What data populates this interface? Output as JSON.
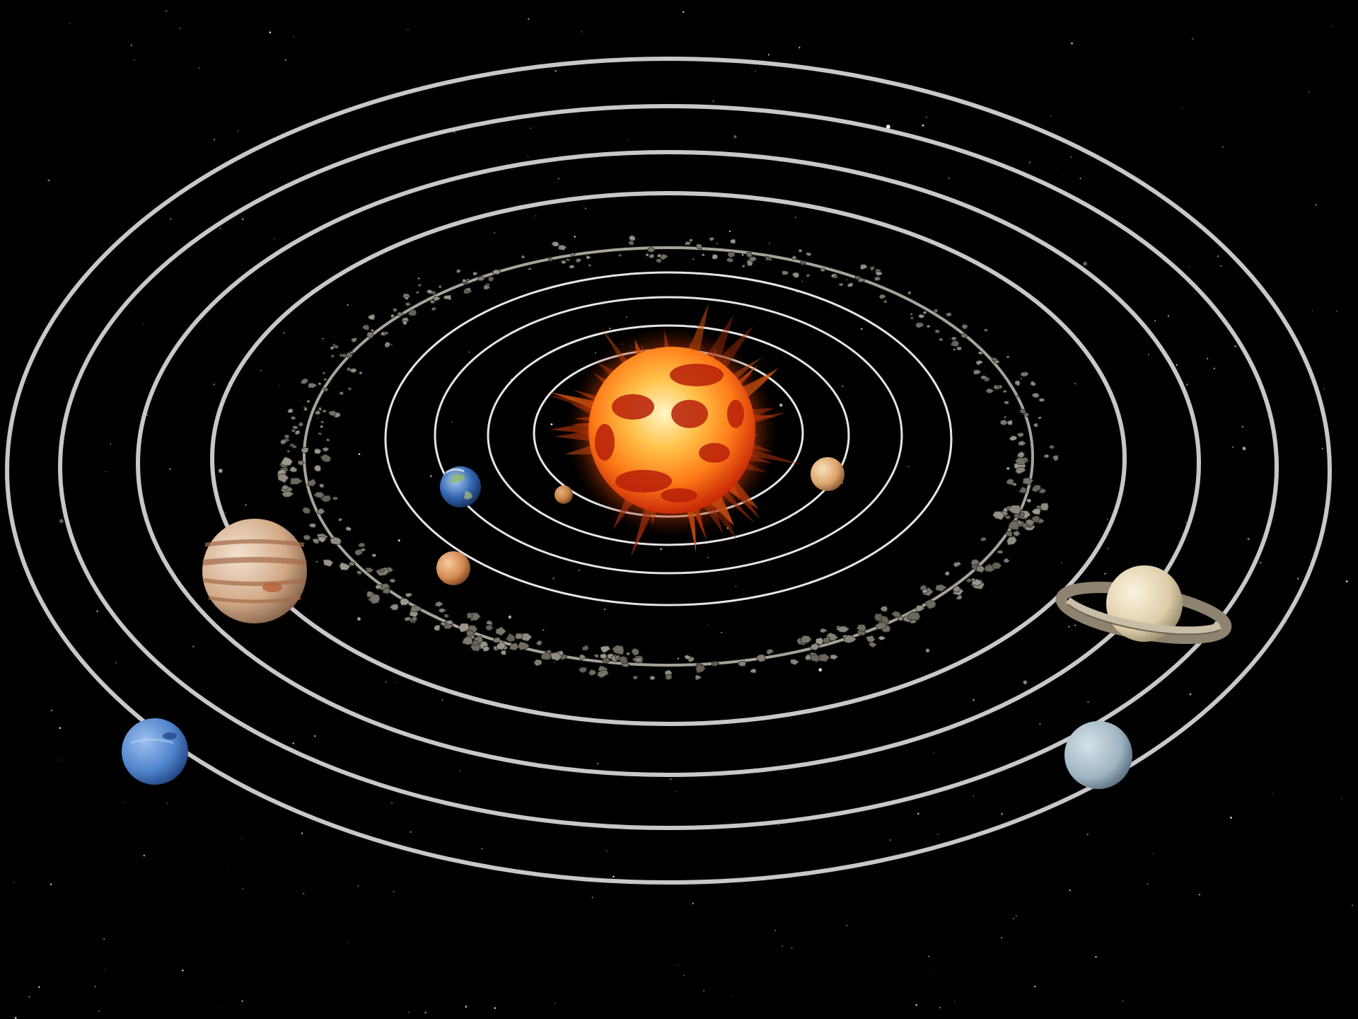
{
  "scene": {
    "subject": "solar-system",
    "palette": {
      "space": "#000000",
      "orbit_outer": "#c8c8c8",
      "orbit_inner": "#e6e6e6",
      "sun_core": "#fff2b0",
      "sun_mid": "#ff9a1e",
      "sun_edge": "#d8320a",
      "sun_spot": "#b01808",
      "asteroid": "#8a8479",
      "mercury": "#c98a4a",
      "venus": "#e4b27a",
      "earth_ocean": "#2a5ca8",
      "earth_land": "#8fb56a",
      "mars": "#d08a55",
      "jupiter": "#d9b99a",
      "jupiter_band": "#a86e4c",
      "saturn": "#e8dcc0",
      "saturn_ring": "#b8ad96",
      "uranus": "#a9bcc8",
      "neptune": "#4a7fc8"
    },
    "bodies": [
      {
        "name": "sun",
        "kind": "star"
      },
      {
        "name": "mercury",
        "kind": "planet"
      },
      {
        "name": "venus",
        "kind": "planet"
      },
      {
        "name": "earth",
        "kind": "planet"
      },
      {
        "name": "mars",
        "kind": "planet"
      },
      {
        "name": "asteroid-belt",
        "kind": "belt"
      },
      {
        "name": "jupiter",
        "kind": "planet"
      },
      {
        "name": "saturn",
        "kind": "planet",
        "rings": true
      },
      {
        "name": "uranus",
        "kind": "planet"
      },
      {
        "name": "neptune",
        "kind": "planet"
      }
    ]
  }
}
